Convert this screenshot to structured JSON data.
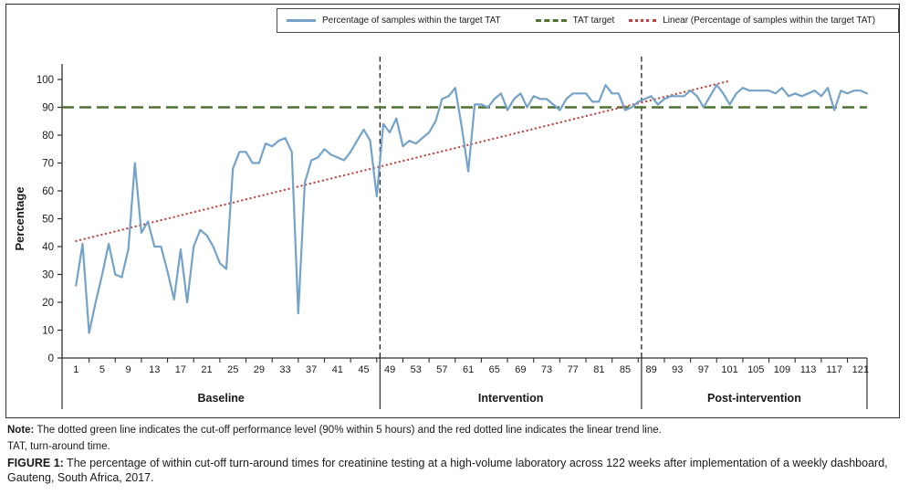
{
  "legend": {
    "series_label": "Percentage of samples within the target TAT",
    "target_label": "TAT target",
    "linear_label": "Linear (Percentage of samples within the target TAT)"
  },
  "colors": {
    "series": "#74A2C8",
    "target": "#4E7230",
    "trend": "#BE4040",
    "axis": "#2e2e2e",
    "divider": "#222222",
    "text": "#1a1a1a"
  },
  "chart_data": {
    "type": "line",
    "title": "",
    "xlabel": "",
    "ylabel": "Percentage",
    "ylim": [
      0,
      100
    ],
    "y_tick_step": 10,
    "x_range": [
      1,
      122
    ],
    "x_tick_labels": [
      1,
      5,
      9,
      13,
      17,
      21,
      25,
      29,
      33,
      37,
      41,
      45,
      49,
      53,
      57,
      61,
      65,
      69,
      73,
      77,
      81,
      85,
      89,
      93,
      97,
      101,
      105,
      109,
      113,
      117,
      121
    ],
    "series_name": "Percentage of samples within the target TAT",
    "values": [
      26,
      41,
      9,
      20,
      30,
      41,
      30,
      29,
      39,
      70,
      45,
      49,
      40,
      40,
      31,
      21,
      39,
      20,
      40,
      46,
      44,
      40,
      34,
      32,
      68,
      74,
      74,
      70,
      70,
      77,
      76,
      78,
      79,
      74,
      16,
      63,
      71,
      72,
      75,
      73,
      72,
      71,
      74,
      78,
      82,
      78,
      58,
      84,
      81,
      86,
      76,
      78,
      77,
      79,
      81,
      85,
      93,
      94,
      97,
      83,
      67,
      91,
      91,
      90,
      93,
      95,
      89,
      93,
      95,
      90,
      94,
      93,
      93,
      91,
      89,
      93,
      95,
      95,
      95,
      92,
      92,
      98,
      95,
      95,
      89,
      90,
      92,
      93,
      94,
      91,
      93,
      94,
      94,
      94,
      96,
      94,
      90,
      94,
      98,
      95,
      91,
      95,
      97,
      96,
      96,
      96,
      96,
      95,
      97,
      94,
      95,
      94,
      95,
      96,
      94,
      97,
      89,
      96,
      95,
      96,
      96,
      95
    ],
    "target_value": 90,
    "trend_line": {
      "x1": 1,
      "y1": 42,
      "x2": 101,
      "y2": 99.5
    },
    "section_dividers_at_week": [
      47.5,
      87.5
    ],
    "sections": [
      {
        "label": "Baseline",
        "start_week": 1,
        "end_week": 47
      },
      {
        "label": "Intervention",
        "start_week": 48,
        "end_week": 87
      },
      {
        "label": "Post-intervention",
        "start_week": 88,
        "end_week": 122
      }
    ],
    "legend_position": "top",
    "grid": false
  },
  "notes": {
    "note_prefix": "Note:",
    "note_text": " The dotted green line indicates the cut-off performance level (90% within 5 hours) and the red dotted line indicates the linear trend line.",
    "tat_line": "TAT, turn-around time.",
    "figure_prefix": "FIGURE 1:",
    "figure_text": " The percentage of within cut-off turn-around times for creatinine testing at a high-volume laboratory across 122 weeks after implementation of a weekly dashboard, Gauteng, South Africa, 2017."
  }
}
